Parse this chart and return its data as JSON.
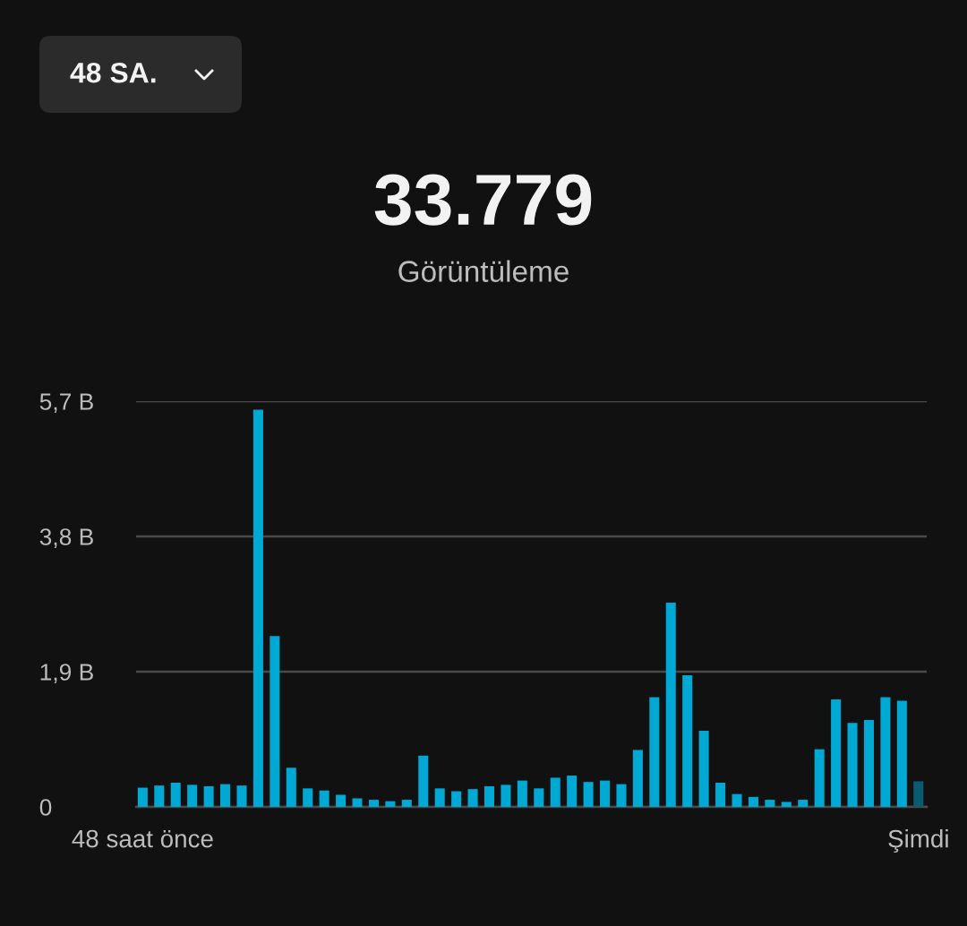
{
  "chart_data": {
    "type": "bar",
    "title": "33.779",
    "subtitle": "Görüntüleme",
    "annotations": [
      "48 SA."
    ],
    "categories": [
      "48 saat önce",
      null,
      null,
      null,
      null,
      null,
      null,
      null,
      null,
      null,
      null,
      null,
      null,
      null,
      null,
      null,
      null,
      null,
      null,
      null,
      null,
      null,
      null,
      null,
      null,
      null,
      null,
      null,
      null,
      null,
      null,
      null,
      null,
      null,
      null,
      null,
      null,
      null,
      null,
      null,
      null,
      null,
      null,
      null,
      null,
      null,
      null,
      "Şimdi"
    ],
    "values": [
      0.27,
      0.3,
      0.34,
      0.31,
      0.29,
      0.32,
      0.3,
      5.58,
      2.4,
      0.55,
      0.26,
      0.23,
      0.17,
      0.12,
      0.1,
      0.08,
      0.1,
      0.72,
      0.26,
      0.22,
      0.25,
      0.29,
      0.31,
      0.37,
      0.26,
      0.41,
      0.44,
      0.35,
      0.37,
      0.32,
      0.8,
      1.54,
      2.87,
      1.85,
      1.07,
      0.34,
      0.18,
      0.14,
      0.1,
      0.07,
      0.1,
      0.81,
      1.51,
      1.18,
      1.22,
      1.54,
      1.49,
      0.36
    ],
    "colors": [
      "#00a8d4",
      "#00a8d4",
      "#00a8d4",
      "#00a8d4",
      "#00a8d4",
      "#00a8d4",
      "#00a8d4",
      "#00a8d4",
      "#00a8d4",
      "#00a8d4",
      "#00a8d4",
      "#00a8d4",
      "#00a8d4",
      "#00a8d4",
      "#00a8d4",
      "#00a8d4",
      "#00a8d4",
      "#00a8d4",
      "#00a8d4",
      "#00a8d4",
      "#00a8d4",
      "#00a8d4",
      "#00a8d4",
      "#00a8d4",
      "#00a8d4",
      "#00a8d4",
      "#00a8d4",
      "#00a8d4",
      "#00a8d4",
      "#00a8d4",
      "#00a8d4",
      "#00a8d4",
      "#00a8d4",
      "#00a8d4",
      "#00a8d4",
      "#00a8d4",
      "#00a8d4",
      "#00a8d4",
      "#00a8d4",
      "#00a8d4",
      "#00a8d4",
      "#00a8d4",
      "#00a8d4",
      "#00a8d4",
      "#00a8d4",
      "#00a8d4",
      "#00a8d4",
      "#0a5a70"
    ],
    "ylim": [
      0,
      5.7
    ],
    "yticks": [
      0,
      {
        "value": 1.9,
        "label": "1,9 B"
      },
      {
        "value": 3.8,
        "label": "3,8 B"
      },
      {
        "value": 5.7,
        "label": "5,7 B"
      }
    ],
    "grid": "y"
  }
}
